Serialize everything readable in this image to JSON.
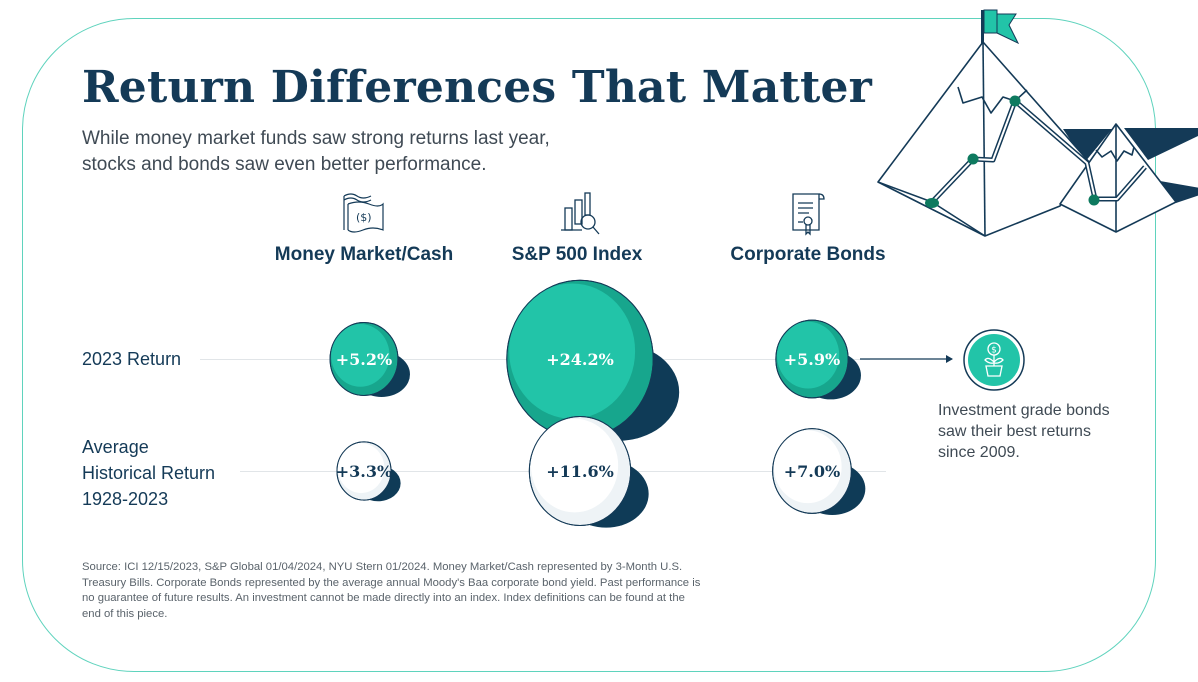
{
  "header": {
    "title": "Return Differences That Matter",
    "subtitle": "While money market funds saw strong returns last year, stocks and bonds saw even better performance."
  },
  "categories": [
    {
      "label": "Money Market/Cash",
      "icon": "cash-icon"
    },
    {
      "label": "S&P 500 Index",
      "icon": "chart-magnifier-icon"
    },
    {
      "label": "Corporate Bonds",
      "icon": "certificate-icon"
    }
  ],
  "rows": [
    {
      "label": "2023 Return"
    },
    {
      "label_lines": [
        "Average",
        "Historical Return",
        "1928-2023"
      ]
    }
  ],
  "callout": {
    "icon": "money-plant-icon",
    "text": "Investment grade bonds saw their best returns since 2009."
  },
  "source": "Source: ICI 12/15/2023, S&P Global 01/04/2024, NYU Stern 01/2024. Money Market/Cash represented by 3-Month U.S. Treasury Bills. Corporate Bonds represented by the average annual Moody's Baa corporate bond yield. Past performance is no guarantee of future results. An investment cannot be made directly into an index. Index definitions can be found at the end of this piece.",
  "colors": {
    "navy": "#143a57",
    "teal": "#22c4a8",
    "teal_dark": "#17a68d",
    "shadow": "#0f3b57",
    "frame": "#5fd3bd"
  },
  "chart_data": {
    "type": "bubble",
    "title": "Return Differences That Matter",
    "categories": [
      "Money Market/Cash",
      "S&P 500 Index",
      "Corporate Bonds"
    ],
    "series": [
      {
        "name": "2023 Return",
        "values": [
          5.2,
          24.2,
          5.9
        ],
        "labels": [
          "+5.2%",
          "+24.2%",
          "+5.9%"
        ],
        "fill": "teal"
      },
      {
        "name": "Average Historical Return 1928-2023",
        "values": [
          3.3,
          11.6,
          7.0
        ],
        "labels": [
          "+3.3%",
          "+11.6%",
          "+7.0%"
        ],
        "fill": "white"
      }
    ],
    "unit": "%",
    "annotation": "Investment grade bonds saw their best returns since 2009."
  }
}
